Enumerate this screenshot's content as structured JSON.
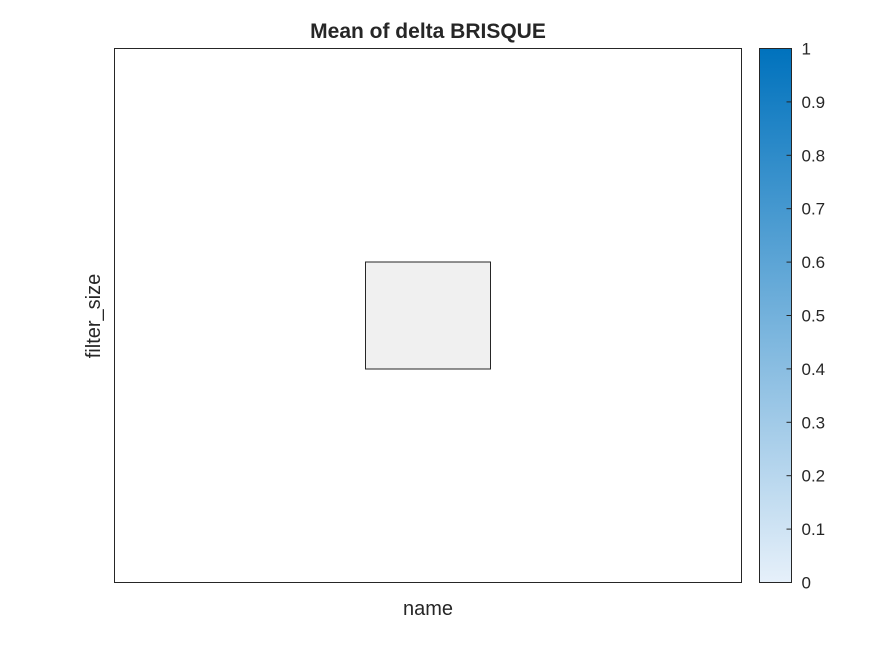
{
  "chart_data": {
    "type": "heatmap",
    "title": "Mean of delta BRISQUE",
    "xlabel": "name",
    "ylabel": "filter_size",
    "x_categories": [],
    "y_categories": [],
    "cells": [
      {
        "row": 0,
        "col": 0,
        "value": null,
        "display": "empty"
      }
    ],
    "colorbar": {
      "min": 0,
      "max": 1,
      "ticks": [
        0,
        0.1,
        0.2,
        0.3,
        0.4,
        0.5,
        0.6,
        0.7,
        0.8,
        0.9,
        1
      ],
      "tick_labels": [
        "0",
        "0.1",
        "0.2",
        "0.3",
        "0.4",
        "0.5",
        "0.6",
        "0.7",
        "0.8",
        "0.9",
        "1"
      ],
      "color_low": "#e6f0fa",
      "color_high": "#0072bd"
    },
    "missing_cell_color": "#f0f0f0",
    "grid": false,
    "legend": "colorbar-right"
  }
}
